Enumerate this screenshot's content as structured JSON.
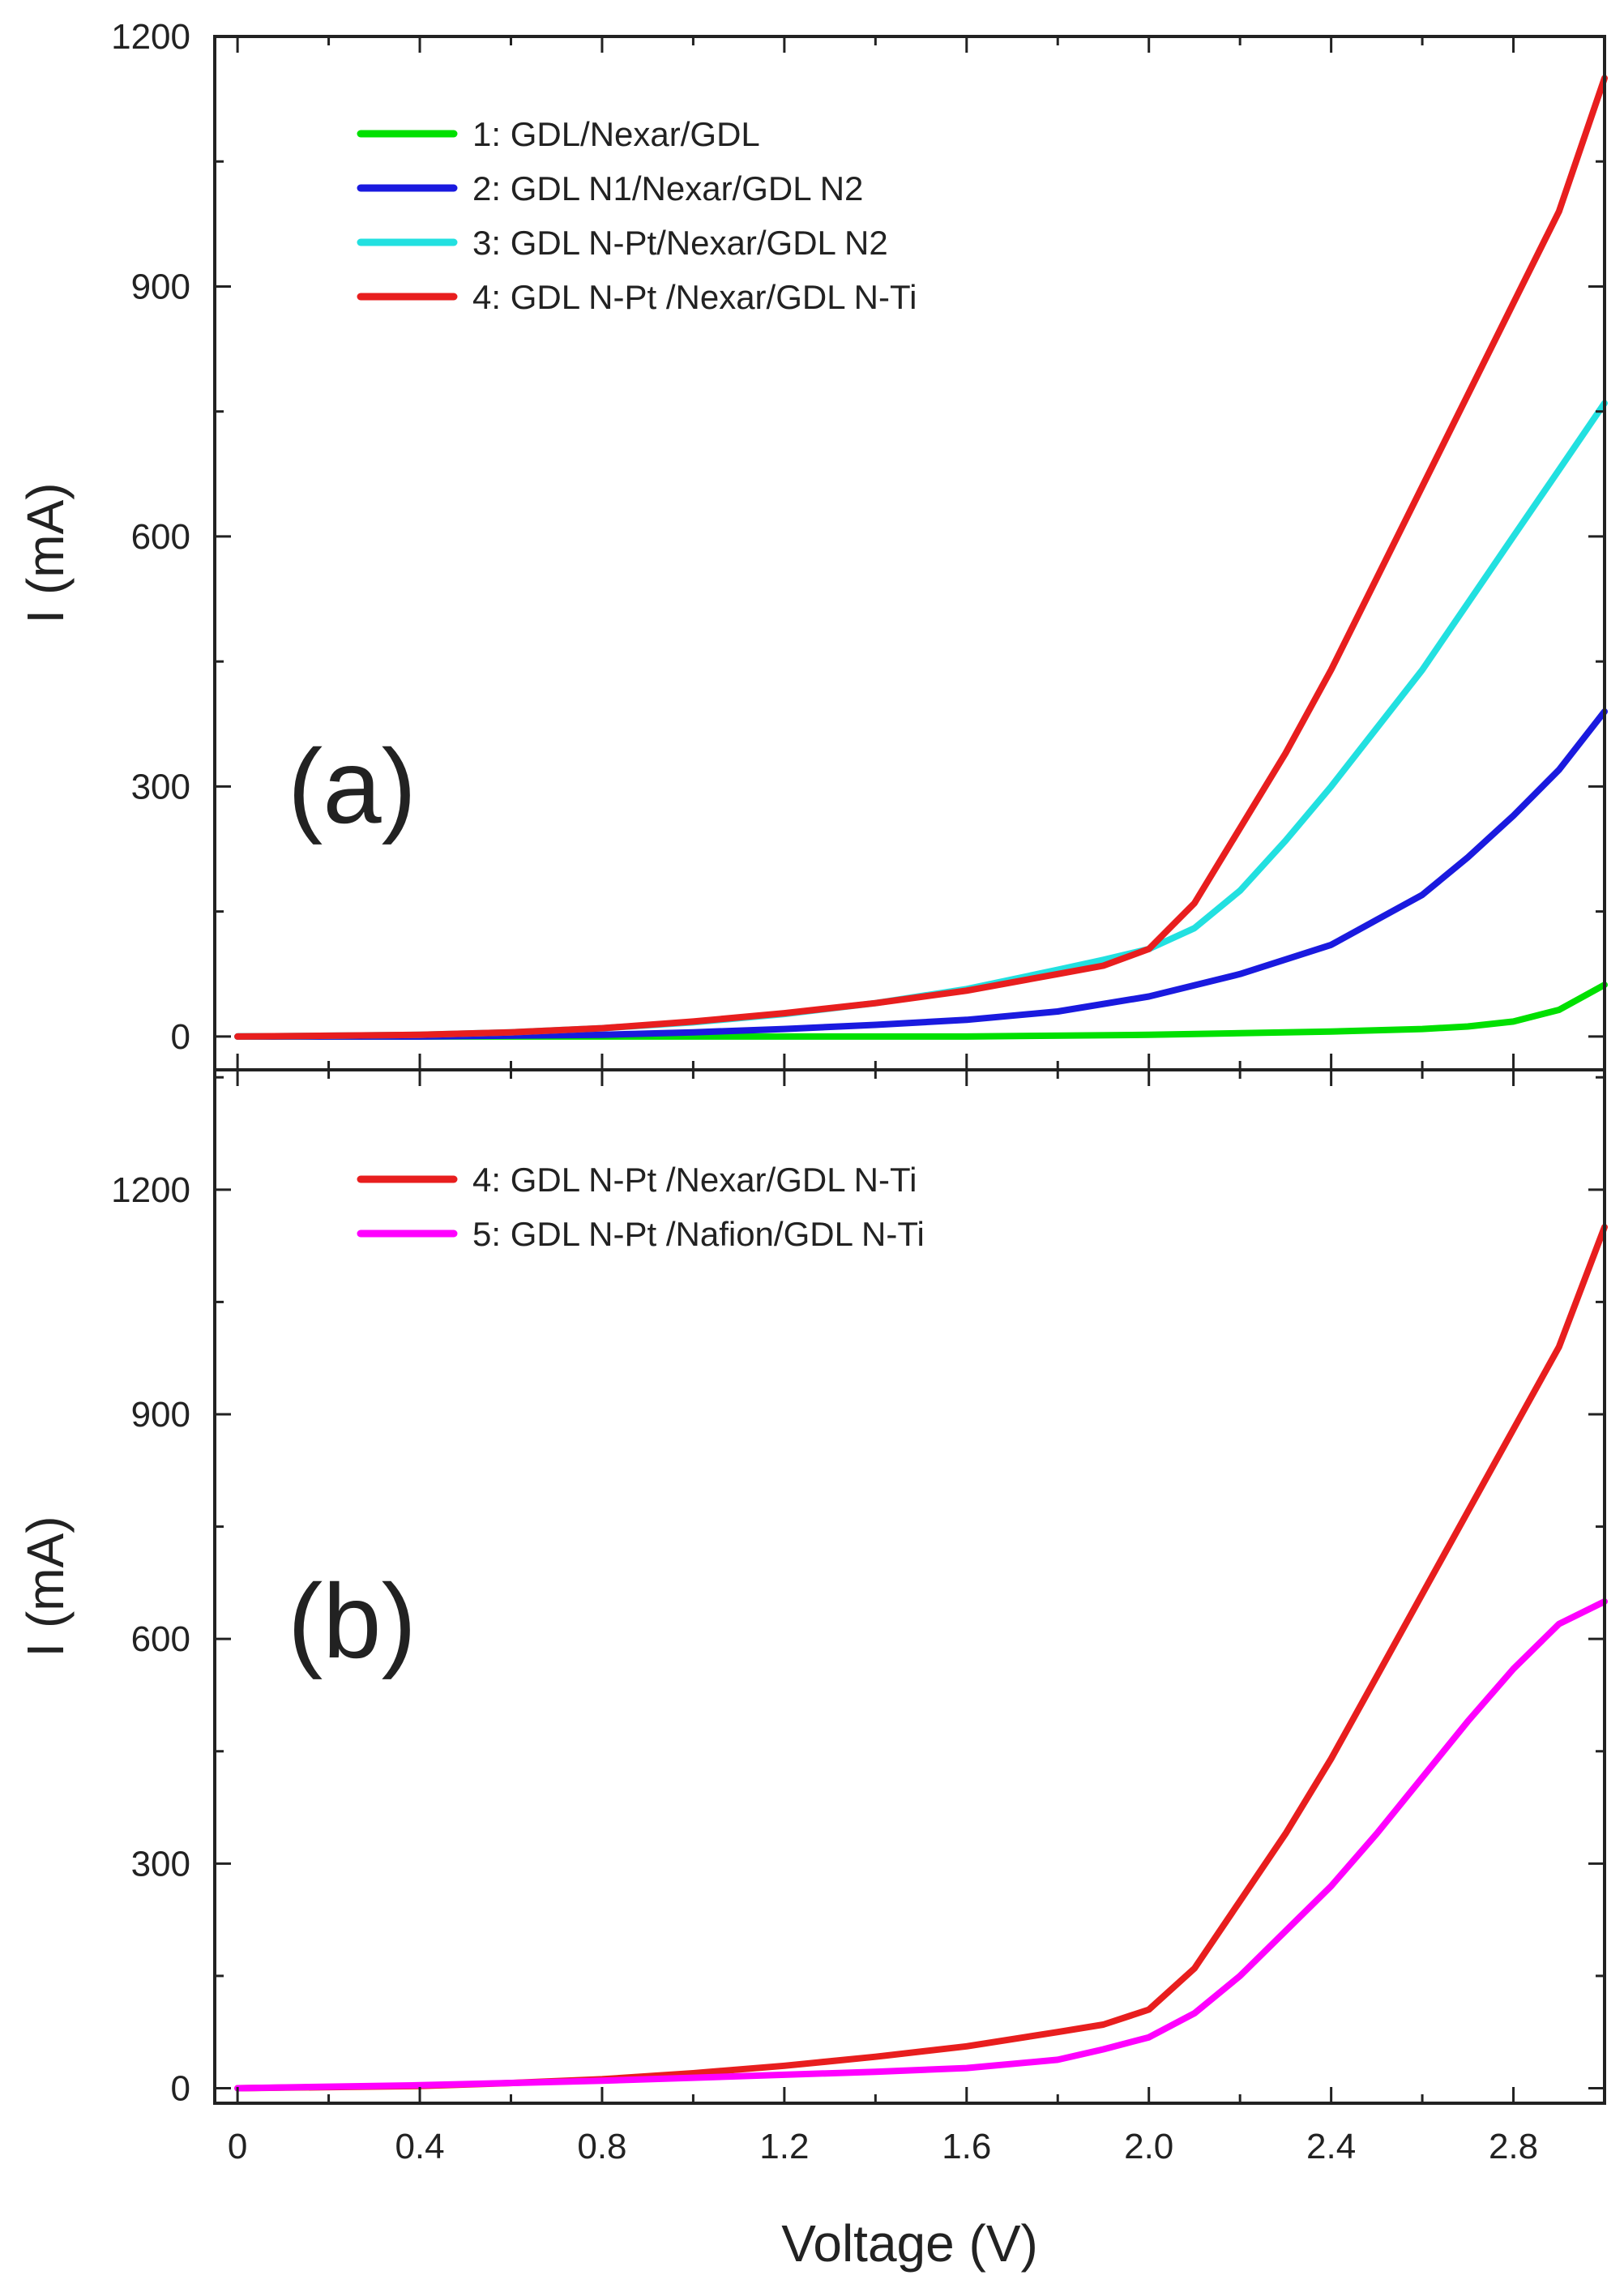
{
  "chart_data": [
    {
      "type": "line",
      "panel_label": "(a)",
      "xlabel": "",
      "ylabel": "I (mA)",
      "xlim": [
        -0.05,
        3.0
      ],
      "ylim": [
        -40,
        1200
      ],
      "x_ticks": [
        0,
        0.4,
        0.8,
        1.2,
        1.6,
        2.0,
        2.4,
        2.8
      ],
      "x_tick_labels": [],
      "y_ticks": [
        0,
        300,
        600,
        900,
        1200
      ],
      "y_tick_labels": [
        "0",
        "300",
        "600",
        "900",
        "1200"
      ],
      "grid": false,
      "legend_position": "top-left",
      "series": [
        {
          "name": "1: GDL/Nexar/GDL",
          "color": "#00e000",
          "x": [
            0,
            0.4,
            0.8,
            1.2,
            1.6,
            2.0,
            2.2,
            2.4,
            2.6,
            2.7,
            2.8,
            2.9,
            3.0
          ],
          "y": [
            0,
            0,
            0,
            0,
            0,
            2,
            4,
            6,
            9,
            12,
            18,
            32,
            62
          ]
        },
        {
          "name": "2: GDL N1/Nexar/GDL N2",
          "color": "#1a1adf",
          "x": [
            0,
            0.4,
            0.8,
            1.0,
            1.2,
            1.4,
            1.6,
            1.8,
            2.0,
            2.2,
            2.4,
            2.5,
            2.6,
            2.7,
            2.8,
            2.9,
            3.0
          ],
          "y": [
            0,
            0,
            2,
            5,
            9,
            14,
            20,
            30,
            48,
            75,
            110,
            140,
            170,
            215,
            265,
            320,
            390
          ]
        },
        {
          "name": "3: GDL N-Pt/Nexar/GDL N2",
          "color": "#22e0e0",
          "x": [
            0,
            0.4,
            0.6,
            0.8,
            1.0,
            1.2,
            1.4,
            1.6,
            1.8,
            1.9,
            2.0,
            2.1,
            2.2,
            2.3,
            2.4,
            2.5,
            2.6,
            2.7,
            2.8,
            2.9,
            3.0
          ],
          "y": [
            0,
            2,
            5,
            10,
            17,
            27,
            40,
            57,
            80,
            92,
            105,
            130,
            175,
            235,
            300,
            370,
            440,
            520,
            600,
            680,
            760
          ]
        },
        {
          "name": "4: GDL N-Pt /Nexar/GDL N-Ti",
          "color": "#e81e1e",
          "x": [
            0,
            0.4,
            0.6,
            0.8,
            1.0,
            1.2,
            1.4,
            1.6,
            1.8,
            1.9,
            2.0,
            2.1,
            2.2,
            2.3,
            2.4,
            2.5,
            2.6,
            2.7,
            2.8,
            2.9,
            3.0
          ],
          "y": [
            0,
            2,
            5,
            10,
            18,
            28,
            40,
            55,
            75,
            85,
            105,
            160,
            250,
            340,
            440,
            550,
            660,
            770,
            880,
            990,
            1150
          ]
        }
      ]
    },
    {
      "type": "line",
      "panel_label": "(b)",
      "xlabel": "Voltage (V)",
      "ylabel": "I (mA)",
      "xlim": [
        -0.05,
        3.0
      ],
      "ylim": [
        -20,
        1360
      ],
      "x_ticks": [
        0,
        0.4,
        0.8,
        1.2,
        1.6,
        2.0,
        2.4,
        2.8
      ],
      "x_tick_labels": [
        "0",
        "0.4",
        "0.8",
        "1.2",
        "1.6",
        "2.0",
        "2.4",
        "2.8"
      ],
      "y_ticks": [
        0,
        300,
        600,
        900,
        1200
      ],
      "y_tick_labels": [
        "0",
        "300",
        "600",
        "900",
        "1200"
      ],
      "grid": false,
      "legend_position": "top-left",
      "series": [
        {
          "name": "4: GDL N-Pt /Nexar/GDL N-Ti",
          "color": "#e81e1e",
          "x": [
            0,
            0.4,
            0.6,
            0.8,
            1.0,
            1.2,
            1.4,
            1.6,
            1.8,
            1.9,
            2.0,
            2.1,
            2.2,
            2.3,
            2.4,
            2.5,
            2.6,
            2.7,
            2.8,
            2.9,
            3.0
          ],
          "y": [
            0,
            3,
            7,
            12,
            20,
            30,
            42,
            56,
            75,
            85,
            105,
            160,
            250,
            340,
            440,
            550,
            660,
            770,
            880,
            990,
            1150
          ]
        },
        {
          "name": "5: GDL N-Pt /Nafion/GDL N-Ti",
          "color": "#ff00ff",
          "x": [
            0,
            0.4,
            0.8,
            1.0,
            1.2,
            1.4,
            1.6,
            1.8,
            1.9,
            2.0,
            2.1,
            2.2,
            2.3,
            2.4,
            2.5,
            2.6,
            2.7,
            2.8,
            2.9,
            3.0
          ],
          "y": [
            0,
            4,
            10,
            14,
            18,
            22,
            27,
            38,
            52,
            68,
            100,
            150,
            210,
            270,
            340,
            415,
            490,
            560,
            620,
            650
          ]
        }
      ]
    }
  ]
}
